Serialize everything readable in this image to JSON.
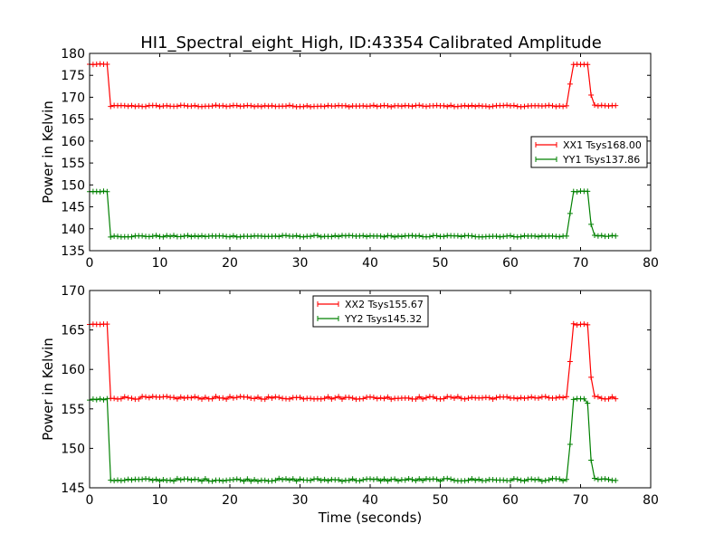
{
  "chart_data": [
    {
      "type": "line",
      "title": "HI1_Spectral_eight_High, ID:43354 Calibrated Amplitude",
      "xlabel": "",
      "ylabel": "Power in Kelvin",
      "xlim": [
        0,
        80
      ],
      "ylim": [
        135,
        180
      ],
      "xticks": [
        "0",
        "10",
        "20",
        "30",
        "40",
        "50",
        "60",
        "70",
        "80"
      ],
      "yticks": [
        "135",
        "140",
        "145",
        "150",
        "155",
        "160",
        "165",
        "170",
        "175",
        "180"
      ],
      "grid": false,
      "legend_position": "center-right",
      "series": [
        {
          "name": "XX1 Tsys168.00",
          "color": "#ff0000",
          "baseline": 168.0,
          "on_level": 177.5,
          "transition": 171.5,
          "transition_late": 170.5,
          "early_rise": 173.0
        },
        {
          "name": "YY1 Tsys137.86",
          "color": "#008000",
          "baseline": 138.3,
          "on_level": 148.5,
          "transition": 142.0,
          "transition_late": 141.0,
          "early_rise": 143.5
        }
      ]
    },
    {
      "type": "line",
      "title": "",
      "xlabel": "Time (seconds)",
      "ylabel": "Power in Kelvin",
      "xlim": [
        0,
        80
      ],
      "ylim": [
        145,
        170
      ],
      "xticks": [
        "0",
        "10",
        "20",
        "30",
        "40",
        "50",
        "60",
        "70",
        "80"
      ],
      "yticks": [
        "145",
        "150",
        "155",
        "160",
        "165",
        "170"
      ],
      "grid": false,
      "legend_position": "top-center",
      "series": [
        {
          "name": "XX2 Tsys155.67",
          "color": "#ff0000",
          "baseline": 156.4,
          "on_level": 165.7,
          "transition": 159.5,
          "transition_late": 159.0,
          "early_rise": 161.0
        },
        {
          "name": "YY2 Tsys145.32",
          "color": "#008000",
          "baseline": 146.0,
          "on_level": 156.2,
          "on_level_late": 155.8,
          "transition": 149.5,
          "transition_late": 148.5,
          "early_rise": 150.5
        }
      ]
    }
  ]
}
